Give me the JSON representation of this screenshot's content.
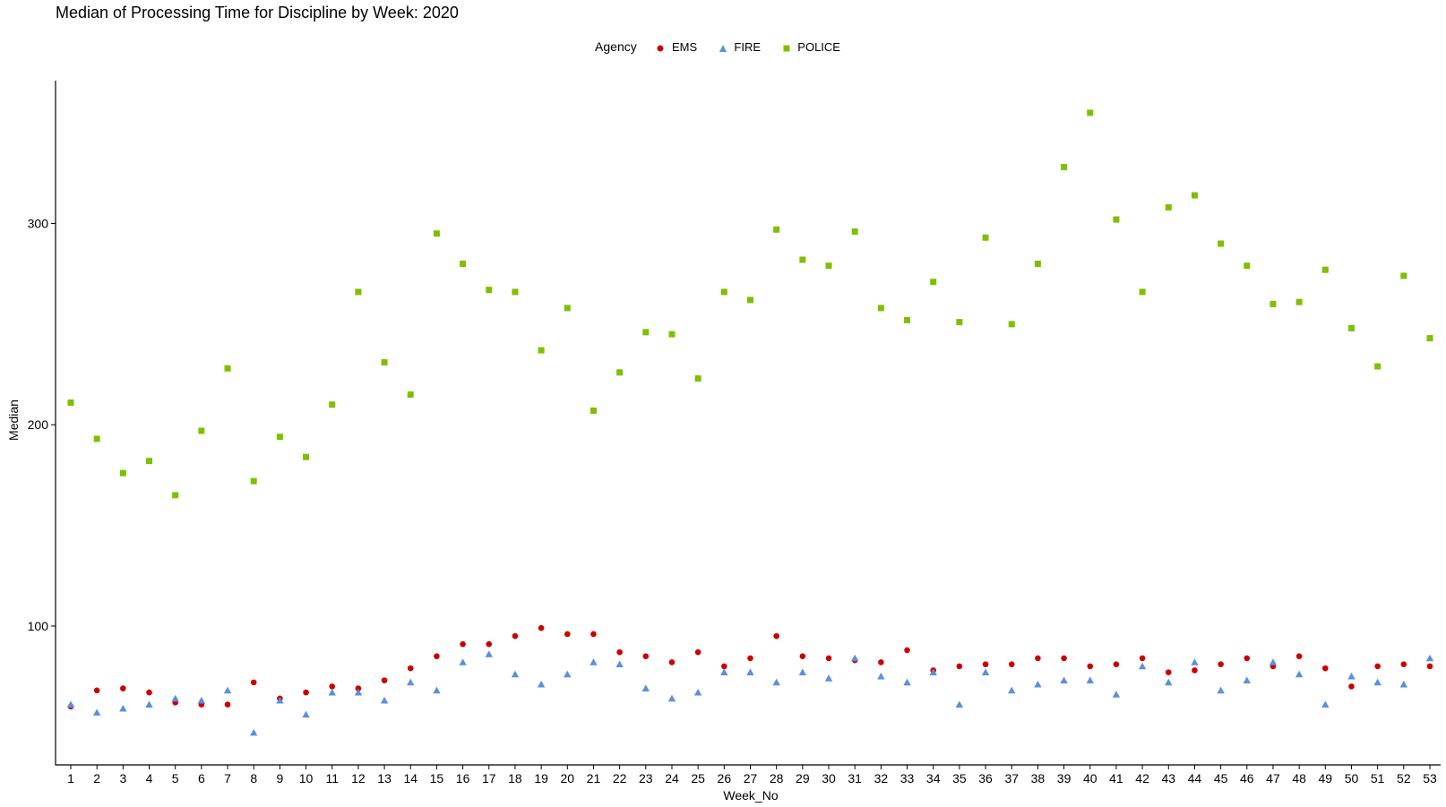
{
  "chart_data": {
    "type": "scatter",
    "title": "Median of Processing Time for Discipline by Week: 2020",
    "xlabel": "Week_No",
    "ylabel": "Median",
    "legend_title": "Agency",
    "legend_position": "top",
    "grid": false,
    "xlim": [
      1,
      53
    ],
    "ylim": [
      31,
      371
    ],
    "y_ticks": [
      100,
      200,
      300
    ],
    "categories": [
      1,
      2,
      3,
      4,
      5,
      6,
      7,
      8,
      9,
      10,
      11,
      12,
      13,
      14,
      15,
      16,
      17,
      18,
      19,
      20,
      21,
      22,
      23,
      24,
      25,
      26,
      27,
      28,
      29,
      30,
      31,
      32,
      33,
      34,
      35,
      36,
      37,
      38,
      39,
      40,
      41,
      42,
      43,
      44,
      45,
      46,
      47,
      48,
      49,
      50,
      51,
      52,
      53
    ],
    "series": [
      {
        "name": "EMS",
        "color": "#cc0000",
        "marker": "circle",
        "values": [
          60,
          68,
          69,
          67,
          62,
          61,
          61,
          72,
          64,
          67,
          70,
          69,
          73,
          79,
          85,
          91,
          91,
          95,
          99,
          96,
          96,
          87,
          85,
          82,
          87,
          80,
          84,
          95,
          85,
          84,
          83,
          82,
          88,
          78,
          80,
          81,
          81,
          84,
          84,
          80,
          81,
          84,
          77,
          78,
          81,
          84,
          80,
          85,
          79,
          70,
          80,
          81,
          80
        ]
      },
      {
        "name": "FIRE",
        "color": "#5b8fdf",
        "marker": "triangle",
        "values": [
          61,
          57,
          59,
          61,
          64,
          63,
          68,
          47,
          63,
          56,
          67,
          67,
          63,
          72,
          68,
          82,
          86,
          76,
          71,
          76,
          82,
          81,
          69,
          64,
          67,
          77,
          77,
          72,
          77,
          74,
          84,
          75,
          72,
          77,
          61,
          77,
          68,
          71,
          73,
          73,
          66,
          80,
          72,
          82,
          68,
          73,
          82,
          76,
          61,
          75,
          72,
          71,
          84
        ]
      },
      {
        "name": "POLICE",
        "color": "#7fbf00",
        "marker": "square",
        "values": [
          211,
          193,
          176,
          182,
          165,
          197,
          228,
          172,
          194,
          184,
          210,
          266,
          231,
          215,
          295,
          280,
          267,
          266,
          237,
          258,
          207,
          226,
          246,
          245,
          223,
          266,
          262,
          297,
          282,
          279,
          296,
          258,
          252,
          271,
          251,
          293,
          250,
          280,
          328,
          355,
          302,
          266,
          308,
          314,
          290,
          279,
          260,
          261,
          277,
          248,
          229,
          274,
          243
        ]
      }
    ]
  }
}
